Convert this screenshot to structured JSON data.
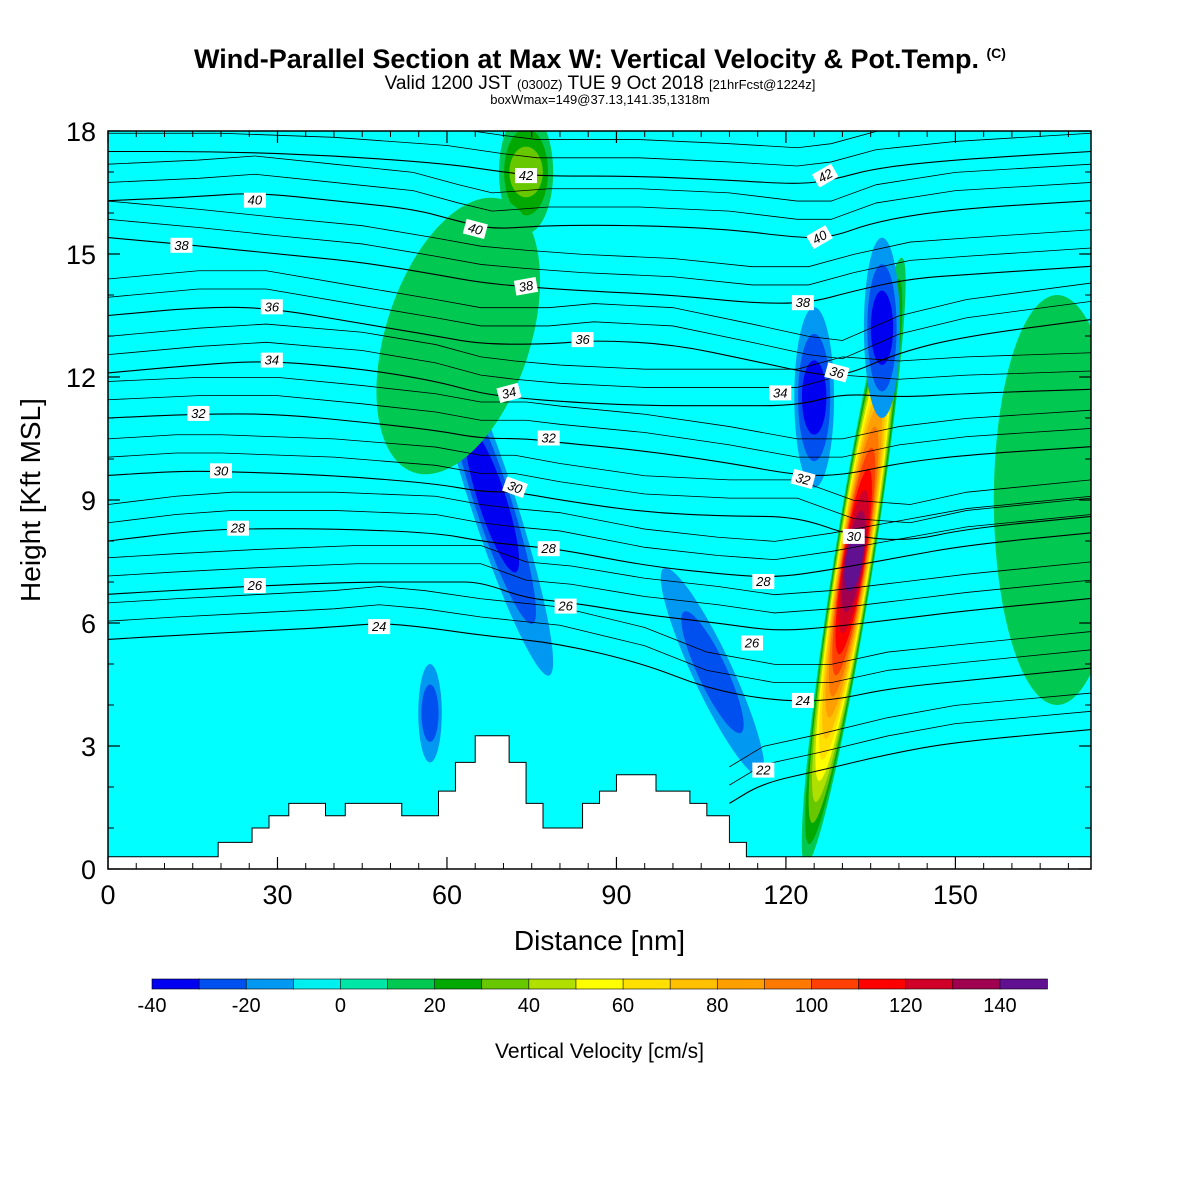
{
  "header": {
    "title_main": "Wind-Parallel Section at Max W: Vertical Velocity & Pot.Temp.",
    "title_mark": "(C)",
    "valid_a": "Valid 1200 JST",
    "valid_b": "(0300Z)",
    "valid_c": "TUE 9 Oct 2018",
    "valid_d": "[21hrFcst@1224z]",
    "boxinfo": "boxWmax=149@37.13,141.35,1318m"
  },
  "chart_data": {
    "type": "heatmap",
    "xlabel": "Distance [nm]",
    "ylabel": "Height [Kft MSL]",
    "xlim": [
      0,
      174
    ],
    "ylim": [
      0,
      18
    ],
    "x_ticks": [
      0,
      30,
      60,
      90,
      120,
      150
    ],
    "y_ticks": [
      0,
      3,
      6,
      9,
      12,
      15,
      18
    ],
    "colorbar": {
      "label": "Vertical Velocity [cm/s]",
      "levels": [
        -40,
        -30,
        -20,
        -10,
        0,
        10,
        20,
        30,
        40,
        50,
        60,
        70,
        80,
        90,
        100,
        110,
        120,
        130,
        140,
        150
      ],
      "tick_labels": [
        "-40",
        "-20",
        "0",
        "20",
        "40",
        "60",
        "80",
        "100",
        "120",
        "140"
      ],
      "colors": [
        "#0000f0",
        "#0050f0",
        "#0098f0",
        "#00f0f0",
        "#00e6a6",
        "#00c850",
        "#00a800",
        "#68c800",
        "#b0e000",
        "#ffff00",
        "#ffe000",
        "#ffc000",
        "#ffa000",
        "#ff7800",
        "#ff4000",
        "#ff0000",
        "#d00028",
        "#a00050",
        "#601090"
      ]
    },
    "background_color": "#00ffff",
    "terrain": [
      [
        0,
        0.3
      ],
      [
        19.5,
        0.3
      ],
      [
        19.5,
        0.65
      ],
      [
        25.5,
        0.65
      ],
      [
        25.5,
        1.0
      ],
      [
        28.5,
        1.0
      ],
      [
        28.5,
        1.3
      ],
      [
        32,
        1.3
      ],
      [
        32,
        1.6
      ],
      [
        38.5,
        1.6
      ],
      [
        38.5,
        1.3
      ],
      [
        42,
        1.3
      ],
      [
        42,
        1.6
      ],
      [
        52,
        1.6
      ],
      [
        52,
        1.3
      ],
      [
        58.5,
        1.3
      ],
      [
        58.5,
        1.9
      ],
      [
        61.5,
        1.9
      ],
      [
        61.5,
        2.6
      ],
      [
        65,
        2.6
      ],
      [
        65,
        3.25
      ],
      [
        71,
        3.25
      ],
      [
        71,
        2.6
      ],
      [
        74,
        2.6
      ],
      [
        74,
        1.6
      ],
      [
        77,
        1.6
      ],
      [
        77,
        1.0
      ],
      [
        84,
        1.0
      ],
      [
        84,
        1.6
      ],
      [
        87,
        1.6
      ],
      [
        87,
        1.9
      ],
      [
        90,
        1.9
      ],
      [
        90,
        2.3
      ],
      [
        97,
        2.3
      ],
      [
        97,
        1.9
      ],
      [
        103,
        1.9
      ],
      [
        103,
        1.6
      ],
      [
        106,
        1.6
      ],
      [
        106,
        1.3
      ],
      [
        110,
        1.3
      ],
      [
        110,
        0.65
      ],
      [
        113,
        0.65
      ],
      [
        113,
        0.3
      ],
      [
        174,
        0.3
      ]
    ],
    "w_features": [
      {
        "cx": 132,
        "cy": 7.5,
        "rx": 2.2,
        "ry": 7.5,
        "rot": 9,
        "value": 149
      },
      {
        "cx": 68,
        "cy": 9.0,
        "rx": 2.5,
        "ry": 4.5,
        "rot": -18,
        "value": -30
      },
      {
        "cx": 125,
        "cy": 11.5,
        "rx": 2.2,
        "ry": 2.2,
        "rot": 0,
        "value": -30
      },
      {
        "cx": 137,
        "cy": 13.2,
        "rx": 2.0,
        "ry": 2.2,
        "rot": 0,
        "value": -30
      },
      {
        "cx": 107,
        "cy": 4.8,
        "rx": 2.2,
        "ry": 2.8,
        "rot": -25,
        "value": -20
      },
      {
        "cx": 57,
        "cy": 3.8,
        "rx": 1.3,
        "ry": 1.2,
        "rot": 0,
        "value": -20
      },
      {
        "cx": 74,
        "cy": 17.0,
        "rx": 3.0,
        "ry": 1.5,
        "rot": 0,
        "value": 30
      },
      {
        "cx": 62,
        "cy": 13.0,
        "rx": 8.0,
        "ry": 3.5,
        "rot": 18,
        "value": 10
      },
      {
        "cx": 168,
        "cy": 9.0,
        "rx": 7.0,
        "ry": 5.0,
        "rot": 0,
        "value": 10
      }
    ],
    "theta_contours": [
      {
        "level": 22,
        "label": "22",
        "pts": [
          [
            110,
            1.6
          ],
          [
            116,
            2.1
          ],
          [
            126,
            2.4
          ],
          [
            138,
            2.8
          ],
          [
            150,
            3.1
          ],
          [
            174,
            3.4
          ]
        ]
      },
      {
        "level": 24,
        "label": "24",
        "pts": [
          [
            0,
            5.6
          ],
          [
            12,
            5.7
          ],
          [
            26,
            5.8
          ],
          [
            40,
            5.9
          ],
          [
            48,
            6.0
          ],
          [
            56,
            5.9
          ],
          [
            66,
            5.7
          ],
          [
            80,
            5.5
          ],
          [
            95,
            5.0
          ],
          [
            106,
            4.4
          ],
          [
            118,
            4.1
          ],
          [
            128,
            4.1
          ],
          [
            138,
            4.4
          ],
          [
            152,
            4.6
          ],
          [
            174,
            4.9
          ]
        ]
      },
      {
        "level": 26,
        "label": "26",
        "pts": [
          [
            0,
            6.7
          ],
          [
            12,
            6.8
          ],
          [
            26,
            6.9
          ],
          [
            44,
            7.0
          ],
          [
            60,
            7.0
          ],
          [
            66,
            7.0
          ],
          [
            74,
            6.6
          ],
          [
            82,
            6.5
          ],
          [
            95,
            6.2
          ],
          [
            108,
            6.0
          ],
          [
            118,
            5.8
          ],
          [
            128,
            5.9
          ],
          [
            140,
            6.1
          ],
          [
            152,
            6.3
          ],
          [
            174,
            6.6
          ]
        ]
      },
      {
        "level": 28,
        "label": "28",
        "pts": [
          [
            0,
            8.0
          ],
          [
            12,
            8.2
          ],
          [
            22,
            8.3
          ],
          [
            40,
            8.3
          ],
          [
            58,
            8.2
          ],
          [
            66,
            8.0
          ],
          [
            72,
            7.9
          ],
          [
            80,
            7.8
          ],
          [
            95,
            7.4
          ],
          [
            108,
            7.2
          ],
          [
            118,
            7.1
          ],
          [
            128,
            7.3
          ],
          [
            140,
            7.6
          ],
          [
            152,
            7.9
          ],
          [
            174,
            8.2
          ]
        ]
      },
      {
        "level": 30,
        "label": "30",
        "pts": [
          [
            0,
            9.6
          ],
          [
            12,
            9.7
          ],
          [
            20,
            9.7
          ],
          [
            40,
            9.6
          ],
          [
            58,
            9.4
          ],
          [
            66,
            9.2
          ],
          [
            72,
            9.2
          ],
          [
            80,
            9.0
          ],
          [
            95,
            8.7
          ],
          [
            110,
            8.6
          ],
          [
            122,
            8.6
          ],
          [
            132,
            8.1
          ],
          [
            142,
            8.0
          ],
          [
            152,
            8.3
          ],
          [
            174,
            8.6
          ]
        ]
      },
      {
        "level": 32,
        "label": "32",
        "pts": [
          [
            0,
            11.0
          ],
          [
            16,
            11.1
          ],
          [
            30,
            11.1
          ],
          [
            45,
            10.9
          ],
          [
            58,
            10.7
          ],
          [
            66,
            10.5
          ],
          [
            74,
            10.5
          ],
          [
            80,
            10.4
          ],
          [
            95,
            10.2
          ],
          [
            110,
            9.9
          ],
          [
            122,
            9.6
          ],
          [
            130,
            9.6
          ],
          [
            140,
            9.9
          ],
          [
            152,
            10.1
          ],
          [
            174,
            10.3
          ]
        ]
      },
      {
        "level": 34,
        "label": "34",
        "pts": [
          [
            0,
            12.1
          ],
          [
            16,
            12.3
          ],
          [
            28,
            12.4
          ],
          [
            45,
            12.2
          ],
          [
            58,
            11.9
          ],
          [
            66,
            11.6
          ],
          [
            72,
            11.5
          ],
          [
            80,
            11.4
          ],
          [
            95,
            11.3
          ],
          [
            110,
            11.3
          ],
          [
            122,
            11.3
          ],
          [
            130,
            11.6
          ],
          [
            140,
            11.5
          ],
          [
            152,
            11.6
          ],
          [
            174,
            11.7
          ]
        ]
      },
      {
        "level": 36,
        "label": "36",
        "pts": [
          [
            0,
            13.5
          ],
          [
            16,
            13.7
          ],
          [
            28,
            13.7
          ],
          [
            45,
            13.3
          ],
          [
            58,
            13.0
          ],
          [
            66,
            12.8
          ],
          [
            78,
            12.8
          ],
          [
            86,
            12.9
          ],
          [
            100,
            12.8
          ],
          [
            114,
            12.4
          ],
          [
            124,
            12.1
          ],
          [
            130,
            12.0
          ],
          [
            140,
            12.6
          ],
          [
            152,
            13.0
          ],
          [
            174,
            13.4
          ]
        ]
      },
      {
        "level": 38,
        "label": "38",
        "pts": [
          [
            0,
            15.4
          ],
          [
            16,
            15.2
          ],
          [
            30,
            15.0
          ],
          [
            45,
            14.8
          ],
          [
            58,
            14.5
          ],
          [
            66,
            14.3
          ],
          [
            74,
            14.2
          ],
          [
            84,
            14.1
          ],
          [
            100,
            14.0
          ],
          [
            114,
            13.8
          ],
          [
            124,
            13.8
          ],
          [
            132,
            14.1
          ],
          [
            142,
            14.4
          ],
          [
            152,
            14.5
          ],
          [
            174,
            14.7
          ]
        ]
      },
      {
        "level": 40,
        "label": "40",
        "pts": [
          [
            0,
            16.3
          ],
          [
            16,
            16.4
          ],
          [
            26,
            16.5
          ],
          [
            40,
            16.3
          ],
          [
            54,
            16.1
          ],
          [
            62,
            15.8
          ],
          [
            68,
            15.6
          ],
          [
            78,
            15.7
          ],
          [
            94,
            15.7
          ],
          [
            110,
            15.6
          ],
          [
            122,
            15.4
          ],
          [
            128,
            15.4
          ],
          [
            136,
            15.8
          ],
          [
            150,
            16.1
          ],
          [
            174,
            16.3
          ]
        ]
      },
      {
        "level": 42,
        "label": "42",
        "pts": [
          [
            0,
            17.5
          ],
          [
            20,
            17.5
          ],
          [
            40,
            17.4
          ],
          [
            60,
            17.2
          ],
          [
            70,
            17.0
          ],
          [
            76,
            16.9
          ],
          [
            94,
            16.9
          ],
          [
            110,
            16.8
          ],
          [
            122,
            16.7
          ],
          [
            128,
            16.8
          ],
          [
            136,
            17.1
          ],
          [
            150,
            17.3
          ],
          [
            174,
            17.5
          ]
        ]
      }
    ],
    "contour_label_positions": [
      {
        "label": "22",
        "x": 116,
        "y": 2.4,
        "rot": 0
      },
      {
        "label": "24",
        "x": 48,
        "y": 5.9,
        "rot": 0
      },
      {
        "label": "24",
        "x": 123,
        "y": 4.1,
        "rot": 0
      },
      {
        "label": "26",
        "x": 26,
        "y": 6.9,
        "rot": 0
      },
      {
        "label": "26",
        "x": 81,
        "y": 6.4,
        "rot": 0
      },
      {
        "label": "26",
        "x": 114,
        "y": 5.5,
        "rot": 0
      },
      {
        "label": "28",
        "x": 23,
        "y": 8.3,
        "rot": 0
      },
      {
        "label": "28",
        "x": 78,
        "y": 7.8,
        "rot": 0
      },
      {
        "label": "28",
        "x": 116,
        "y": 7.0,
        "rot": 0
      },
      {
        "label": "30",
        "x": 20,
        "y": 9.7,
        "rot": 0
      },
      {
        "label": "30",
        "x": 72,
        "y": 9.3,
        "rot": 20
      },
      {
        "label": "30",
        "x": 132,
        "y": 8.1,
        "rot": 0
      },
      {
        "label": "32",
        "x": 16,
        "y": 11.1,
        "rot": 0
      },
      {
        "label": "32",
        "x": 78,
        "y": 10.5,
        "rot": 0
      },
      {
        "label": "32",
        "x": 123,
        "y": 9.5,
        "rot": 15
      },
      {
        "label": "34",
        "x": 29,
        "y": 12.4,
        "rot": 0
      },
      {
        "label": "34",
        "x": 71,
        "y": 11.6,
        "rot": -15
      },
      {
        "label": "34",
        "x": 119,
        "y": 11.6,
        "rot": 0
      },
      {
        "label": "36",
        "x": 29,
        "y": 13.7,
        "rot": 0
      },
      {
        "label": "36",
        "x": 84,
        "y": 12.9,
        "rot": 0
      },
      {
        "label": "36",
        "x": 129,
        "y": 12.1,
        "rot": 15
      },
      {
        "label": "38",
        "x": 13,
        "y": 15.2,
        "rot": 0
      },
      {
        "label": "38",
        "x": 74,
        "y": 14.2,
        "rot": -10
      },
      {
        "label": "38",
        "x": 123,
        "y": 13.8,
        "rot": 0
      },
      {
        "label": "40",
        "x": 26,
        "y": 16.3,
        "rot": 0
      },
      {
        "label": "40",
        "x": 65,
        "y": 15.6,
        "rot": 15
      },
      {
        "label": "40",
        "x": 126,
        "y": 15.4,
        "rot": -30
      },
      {
        "label": "42",
        "x": 74,
        "y": 16.9,
        "rot": 0
      },
      {
        "label": "42",
        "x": 127,
        "y": 16.9,
        "rot": -30
      }
    ]
  }
}
